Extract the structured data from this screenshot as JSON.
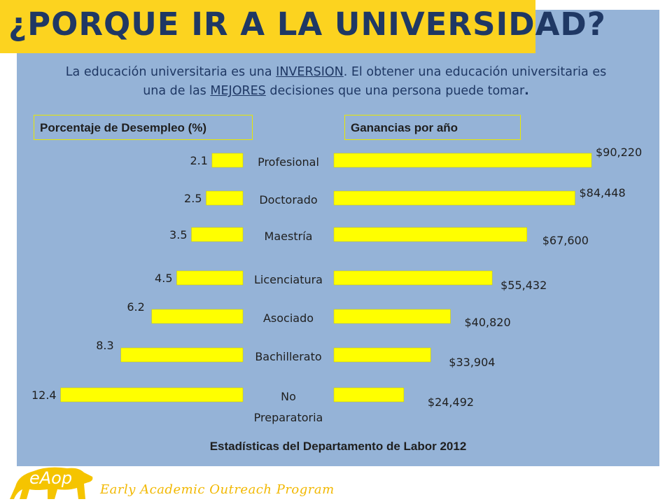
{
  "header": {
    "title": "¿PORQUE IR A LA UNIVERSIDAD?"
  },
  "intro": {
    "line1_prefix": "La educación universitaria es  una  ",
    "line1_link": "INVERSION",
    "line1_suffix": ". El obtener una educación universitaria es",
    "line2_prefix": "una de las  ",
    "line2_link": "MEJORES",
    "line2_suffix": "  decisiones  que una persona puede tomar",
    "line2_end": "."
  },
  "headers": {
    "left": "Porcentaje de Desempleo (%)",
    "right": "Ganancias por año"
  },
  "footer": {
    "source": "Estadísticas del Departamento de Labor 2012"
  },
  "branding": {
    "logo_text": "eAop",
    "program": "Early Academic Outreach Program"
  },
  "colors": {
    "panel": "#95b3d7",
    "title_bg": "#fcd31f",
    "bar": "#ffff00",
    "text": "#1f1f1f"
  },
  "chart_data": [
    {
      "type": "bar",
      "orientation": "horizontal",
      "direction": "leftward",
      "title": "Porcentaje de Desempleo (%)",
      "categories": [
        "Profesional",
        "Doctorado",
        "Maestría",
        "Licenciatura",
        "Asociado",
        "Bachillerato",
        "No Preparatoria"
      ],
      "values": [
        2.1,
        2.5,
        3.5,
        4.5,
        6.2,
        8.3,
        12.4
      ],
      "value_labels": [
        "2.1",
        "2.5",
        "3.5",
        "4.5",
        "6.2",
        "8.3",
        "12.4"
      ]
    },
    {
      "type": "bar",
      "orientation": "horizontal",
      "direction": "rightward",
      "title": "Ganancias por año",
      "categories": [
        "Profesional",
        "Doctorado",
        "Maestría",
        "Licenciatura",
        "Asociado",
        "Bachillerato",
        "No Preparatoria"
      ],
      "values": [
        90220,
        84448,
        67600,
        55432,
        40820,
        33904,
        24492
      ],
      "value_labels": [
        "$90,220",
        "$84,448",
        "$67,600",
        "$55,432",
        "$40,820",
        "$33,904",
        "$24,492"
      ]
    }
  ]
}
